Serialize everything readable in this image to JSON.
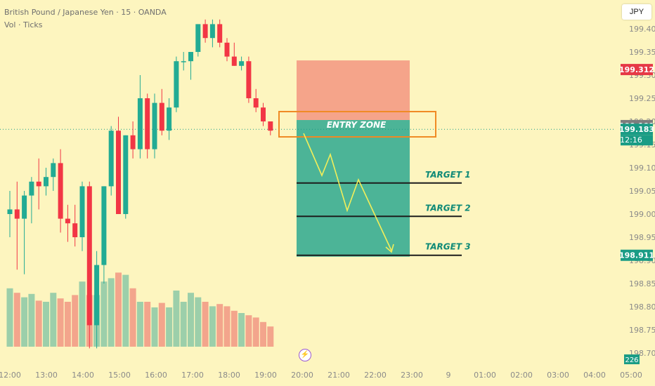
{
  "header": {
    "symbol_line": "British Pound / Japanese Yen · 15 · OANDA",
    "volume_line": "Vol · Ticks"
  },
  "currency_button": "JPY",
  "volume_value_label": "226",
  "countdown_label": "12:16",
  "colors": {
    "background": "#fdf5bf",
    "bull": "#22ab94",
    "bear": "#f23645",
    "bull_volume": "#9ccfaa",
    "bear_volume": "#f3a58c",
    "stop_zone": "#f5a48a",
    "target_zone": "#4cb497",
    "entry_box": "#f08a24",
    "arrow": "#f2ee5a",
    "current_price_tag": "#1a9c85",
    "stop_tag": "#e63946",
    "gray_tag": "#7d7d7d"
  },
  "flash_icon": "lightning-icon",
  "chart_data": {
    "type": "candlestick",
    "price_axis": {
      "ticks": [
        "199.400",
        "199.350",
        "199.300",
        "199.250",
        "199.200",
        "199.150",
        "199.100",
        "199.050",
        "199.000",
        "198.950",
        "198.900",
        "198.850",
        "198.800",
        "198.750",
        "198.700"
      ]
    },
    "time_axis": {
      "ticks": [
        "12:00",
        "13:00",
        "14:00",
        "15:00",
        "16:00",
        "17:00",
        "18:00",
        "19:00",
        "20:00",
        "21:00",
        "22:00",
        "23:00",
        "9",
        "01:00",
        "02:00",
        "03:00",
        "04:00",
        "05:00"
      ]
    },
    "price_tags": [
      {
        "label": "199.312",
        "price": 199.312,
        "color": "#e63946"
      },
      {
        "label": "199.191",
        "price": 199.191,
        "color": "#7d7d7d"
      },
      {
        "label": "199.183",
        "price": 199.183,
        "color": "#1a9c85"
      },
      {
        "label": "198.911",
        "price": 198.911,
        "color": "#1a9c85"
      }
    ],
    "current_price": 199.183,
    "candles": [
      {
        "o": 199.0,
        "h": 199.05,
        "l": 198.95,
        "c": 199.01
      },
      {
        "o": 199.01,
        "h": 199.07,
        "l": 198.88,
        "c": 198.99
      },
      {
        "o": 198.99,
        "h": 199.05,
        "l": 198.87,
        "c": 199.04
      },
      {
        "o": 199.04,
        "h": 199.08,
        "l": 198.98,
        "c": 199.07
      },
      {
        "o": 199.07,
        "h": 199.12,
        "l": 199.01,
        "c": 199.06
      },
      {
        "o": 199.06,
        "h": 199.1,
        "l": 199.04,
        "c": 199.08
      },
      {
        "o": 199.08,
        "h": 199.12,
        "l": 199.05,
        "c": 199.11
      },
      {
        "o": 199.11,
        "h": 199.14,
        "l": 198.96,
        "c": 198.99
      },
      {
        "o": 198.99,
        "h": 199.02,
        "l": 198.94,
        "c": 198.98
      },
      {
        "o": 198.98,
        "h": 199.02,
        "l": 198.93,
        "c": 198.95
      },
      {
        "o": 198.95,
        "h": 199.07,
        "l": 198.92,
        "c": 199.06
      },
      {
        "o": 199.06,
        "h": 199.07,
        "l": 198.71,
        "c": 198.76
      },
      {
        "o": 198.76,
        "h": 198.92,
        "l": 198.71,
        "c": 198.89
      },
      {
        "o": 198.89,
        "h": 199.06,
        "l": 198.85,
        "c": 199.06
      },
      {
        "o": 199.06,
        "h": 199.19,
        "l": 199.04,
        "c": 199.18
      },
      {
        "o": 199.18,
        "h": 199.21,
        "l": 199.0,
        "c": 199.0
      },
      {
        "o": 199.0,
        "h": 199.17,
        "l": 198.99,
        "c": 199.17
      },
      {
        "o": 199.17,
        "h": 199.2,
        "l": 199.12,
        "c": 199.14
      },
      {
        "o": 199.14,
        "h": 199.3,
        "l": 199.12,
        "c": 199.25
      },
      {
        "o": 199.25,
        "h": 199.26,
        "l": 199.12,
        "c": 199.14
      },
      {
        "o": 199.14,
        "h": 199.26,
        "l": 199.12,
        "c": 199.24
      },
      {
        "o": 199.24,
        "h": 199.27,
        "l": 199.17,
        "c": 199.18
      },
      {
        "o": 199.18,
        "h": 199.25,
        "l": 199.16,
        "c": 199.23
      },
      {
        "o": 199.23,
        "h": 199.34,
        "l": 199.22,
        "c": 199.33
      },
      {
        "o": 199.33,
        "h": 199.35,
        "l": 199.31,
        "c": 199.33
      },
      {
        "o": 199.33,
        "h": 199.35,
        "l": 199.29,
        "c": 199.35
      },
      {
        "o": 199.35,
        "h": 199.41,
        "l": 199.34,
        "c": 199.41
      },
      {
        "o": 199.41,
        "h": 199.42,
        "l": 199.37,
        "c": 199.38
      },
      {
        "o": 199.38,
        "h": 199.42,
        "l": 199.36,
        "c": 199.41
      },
      {
        "o": 199.41,
        "h": 199.42,
        "l": 199.36,
        "c": 199.37
      },
      {
        "o": 199.37,
        "h": 199.38,
        "l": 199.33,
        "c": 199.34
      },
      {
        "o": 199.34,
        "h": 199.37,
        "l": 199.32,
        "c": 199.32
      },
      {
        "o": 199.32,
        "h": 199.34,
        "l": 199.31,
        "c": 199.33
      },
      {
        "o": 199.33,
        "h": 199.34,
        "l": 199.24,
        "c": 199.25
      },
      {
        "o": 199.25,
        "h": 199.27,
        "l": 199.22,
        "c": 199.23
      },
      {
        "o": 199.23,
        "h": 199.24,
        "l": 199.19,
        "c": 199.2
      },
      {
        "o": 199.2,
        "h": 199.2,
        "l": 199.17,
        "c": 199.18
      }
    ],
    "volumes": [
      52,
      48,
      44,
      47,
      41,
      40,
      48,
      43,
      40,
      46,
      58,
      46,
      46,
      58,
      61,
      66,
      64,
      52,
      40,
      40,
      35,
      39,
      35,
      50,
      40,
      48,
      44,
      40,
      36,
      38,
      36,
      32,
      30,
      28,
      26,
      22,
      18
    ],
    "trade_setup": {
      "entry_label": "ENTRY ZONE",
      "entry_low": 199.163,
      "entry_high": 199.203,
      "stop_loss": 199.312,
      "targets": [
        {
          "label": "TARGET 1",
          "price": 199.067
        },
        {
          "label": "TARGET 2",
          "price": 198.995
        },
        {
          "label": "TARGET 3",
          "price": 198.911
        }
      ]
    }
  }
}
